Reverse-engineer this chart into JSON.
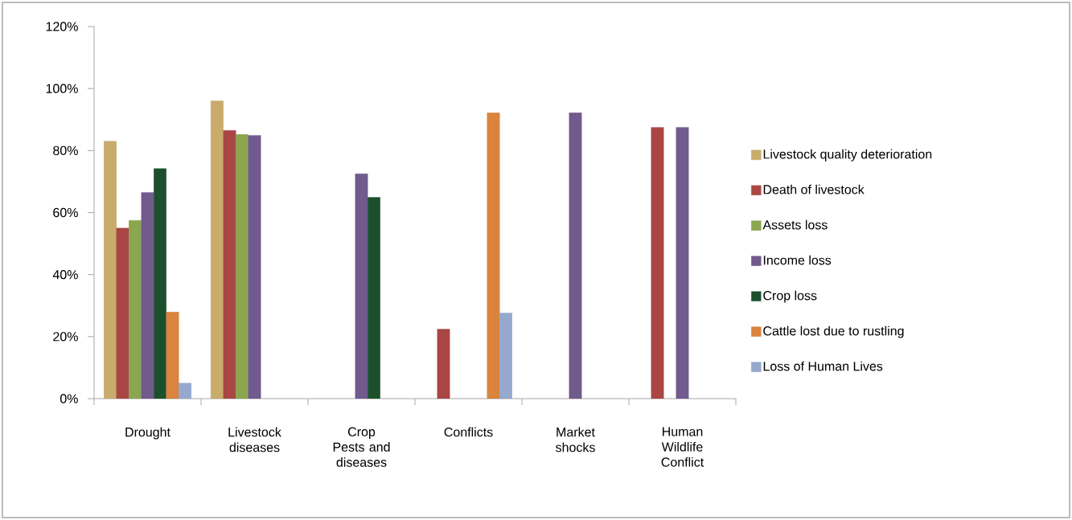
{
  "chart_data": {
    "type": "bar",
    "categories": [
      "Drought",
      "Livestock diseases",
      "Crop Pests and diseases",
      "Conflicts",
      "Market shocks",
      "Human Wildlife Conflict"
    ],
    "series": [
      {
        "name": "Livestock quality deterioration",
        "color": "#c9ab6c",
        "values": [
          83,
          96,
          null,
          null,
          null,
          null
        ]
      },
      {
        "name": "Death of livestock",
        "color": "#aa4644",
        "values": [
          55,
          86.5,
          null,
          22.4,
          null,
          87.5
        ]
      },
      {
        "name": "Assets loss",
        "color": "#8ba64e",
        "values": [
          57.5,
          85.2,
          null,
          null,
          null,
          null
        ]
      },
      {
        "name": "Income loss",
        "color": "#715a8e",
        "values": [
          66.5,
          84.9,
          72.5,
          null,
          92.2,
          87.5
        ]
      },
      {
        "name": "Crop loss",
        "color": "#1c4f2c",
        "values": [
          74.2,
          null,
          64.9,
          null,
          null,
          null
        ]
      },
      {
        "name": "Cattle lost due to rustling",
        "color": "#db843d",
        "values": [
          27.9,
          null,
          null,
          92.2,
          null,
          null
        ]
      },
      {
        "name": "Loss of Human Lives",
        "color": "#95a9cf",
        "values": [
          5,
          null,
          null,
          27.6,
          null,
          null
        ]
      }
    ],
    "ylim": [
      0,
      120
    ],
    "yticks": [
      {
        "value": 0,
        "label": "0%"
      },
      {
        "value": 20,
        "label": "20%"
      },
      {
        "value": 40,
        "label": "40%"
      },
      {
        "value": 60,
        "label": "60%"
      },
      {
        "value": 80,
        "label": "80%"
      },
      {
        "value": 100,
        "label": "100%"
      },
      {
        "value": 120,
        "label": "120%"
      }
    ],
    "legend": "right"
  }
}
